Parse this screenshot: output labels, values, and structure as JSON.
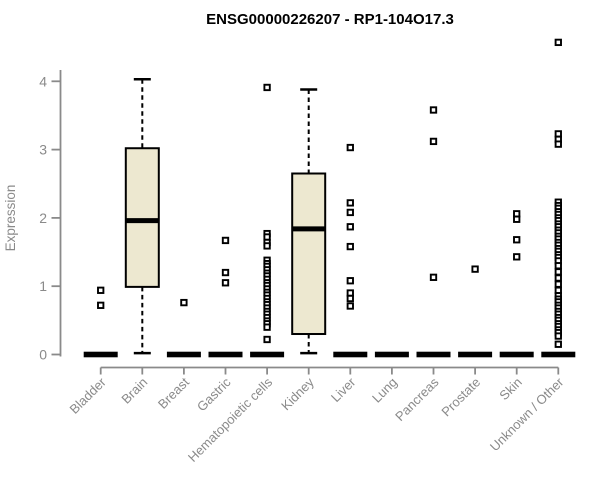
{
  "colors": {
    "box_fill": "#EDE8D0",
    "box_stroke": "#000000",
    "median_color": "#000000",
    "outlier_stroke": "#000000",
    "outlier_fill": "#FFFFFF",
    "axis_gray": "#8A8A8A",
    "label_gray": "#8A8A8A",
    "title_color": "#000000",
    "background": "#FFFFFF"
  },
  "chart_data": {
    "type": "boxplot",
    "title": "ENSG00000226207 - RP1-104O17.3",
    "ylabel": "Expression",
    "xlabel": "",
    "ylim": [
      0,
      4.65
    ],
    "yticks": [
      0,
      1,
      2,
      3,
      4
    ],
    "grid": false,
    "legend": null,
    "categories": [
      "Bladder",
      "Brain",
      "Breast",
      "Gastric",
      "Hematopoietic cells",
      "Kidney",
      "Liver",
      "Lung",
      "Pancreas",
      "Prostate",
      "Skin",
      "Unknown / Other"
    ],
    "series": [
      {
        "category": "Bladder",
        "box": null,
        "zero_bar": true,
        "outliers": [
          0.94,
          0.72
        ]
      },
      {
        "category": "Brain",
        "box": {
          "whisker_low": 0.02,
          "q1": 0.99,
          "median": 1.96,
          "q3": 3.02,
          "whisker_high": 4.03
        },
        "zero_bar": false,
        "outliers": []
      },
      {
        "category": "Breast",
        "box": null,
        "zero_bar": true,
        "outliers": [
          0.76
        ]
      },
      {
        "category": "Gastric",
        "box": null,
        "zero_bar": true,
        "outliers": [
          1.67,
          1.2,
          1.05
        ]
      },
      {
        "category": "Hematopoietic cells",
        "box": null,
        "zero_bar": true,
        "outliers": [
          3.91,
          1.77,
          1.72,
          1.64,
          1.59,
          1.38,
          1.33,
          1.29,
          1.24,
          1.19,
          1.15,
          1.1,
          1.05,
          1.01,
          0.96,
          0.91,
          0.87,
          0.82,
          0.77,
          0.73,
          0.68,
          0.63,
          0.59,
          0.54,
          0.49,
          0.45,
          0.4,
          0.22
        ]
      },
      {
        "category": "Kidney",
        "box": {
          "whisker_low": 0.02,
          "q1": 0.3,
          "median": 1.84,
          "q3": 2.65,
          "whisker_high": 3.88
        },
        "zero_bar": false,
        "outliers": []
      },
      {
        "category": "Liver",
        "box": null,
        "zero_bar": true,
        "outliers": [
          3.03,
          2.22,
          2.08,
          1.87,
          1.58,
          1.08,
          0.9,
          0.82,
          0.71
        ]
      },
      {
        "category": "Lung",
        "box": null,
        "zero_bar": true,
        "outliers": []
      },
      {
        "category": "Pancreas",
        "box": null,
        "zero_bar": true,
        "outliers": [
          3.58,
          3.12,
          1.13
        ]
      },
      {
        "category": "Prostate",
        "box": null,
        "zero_bar": true,
        "outliers": [
          1.25
        ]
      },
      {
        "category": "Skin",
        "box": null,
        "zero_bar": true,
        "outliers": [
          2.06,
          1.98,
          1.68,
          1.43
        ]
      },
      {
        "category": "Unknown / Other",
        "box": null,
        "zero_bar": true,
        "outliers": [
          4.57,
          3.23,
          3.15,
          3.08,
          2.23,
          2.18,
          2.14,
          2.09,
          2.05,
          2.0,
          1.96,
          1.91,
          1.87,
          1.82,
          1.78,
          1.73,
          1.69,
          1.64,
          1.6,
          1.55,
          1.51,
          1.46,
          1.42,
          1.37,
          1.3,
          1.21,
          1.12,
          1.03,
          0.94,
          0.86,
          0.81,
          0.77,
          0.72,
          0.68,
          0.63,
          0.59,
          0.54,
          0.5,
          0.45,
          0.41,
          0.36,
          0.32,
          0.27,
          0.15
        ]
      }
    ]
  }
}
